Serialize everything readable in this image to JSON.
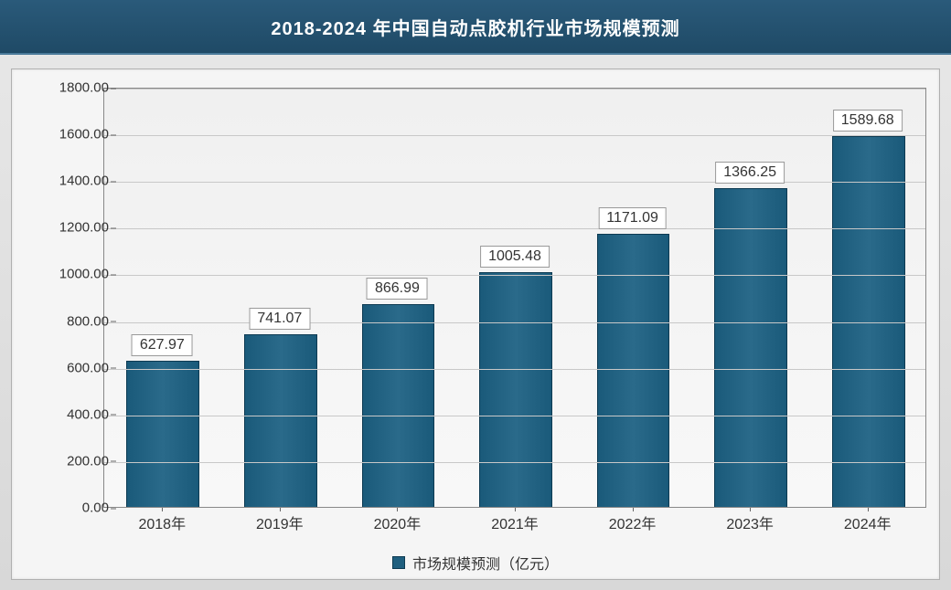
{
  "title": "2018-2024 年中国自动点胶机行业市场规模预测",
  "chart": {
    "type": "bar",
    "categories": [
      "2018年",
      "2019年",
      "2020年",
      "2021年",
      "2022年",
      "2023年",
      "2024年"
    ],
    "values": [
      627.97,
      741.07,
      866.99,
      1005.48,
      1171.09,
      1366.25,
      1589.68
    ],
    "value_labels": [
      "627.97",
      "741.07",
      "866.99",
      "1005.48",
      "1171.09",
      "1366.25",
      "1589.68"
    ],
    "ylim": [
      0,
      1800
    ],
    "ytick_step": 200,
    "yticks": [
      "0.00",
      "200.00",
      "400.00",
      "600.00",
      "800.00",
      "1000.00",
      "1200.00",
      "1400.00",
      "1600.00",
      "1800.00"
    ],
    "bar_color": "#1f5f7f",
    "bar_border_color": "#0d3a52",
    "bar_width_ratio": 0.62,
    "background_color": "#f5f5f5",
    "grid_color": "#c8c8c8",
    "title_fontsize": 20,
    "tick_fontsize": 15,
    "label_fontsize": 16,
    "title_band_bg": "#1f4a66",
    "title_text_color": "#ffffff",
    "legend_label": "市场规模预测（亿元）"
  }
}
